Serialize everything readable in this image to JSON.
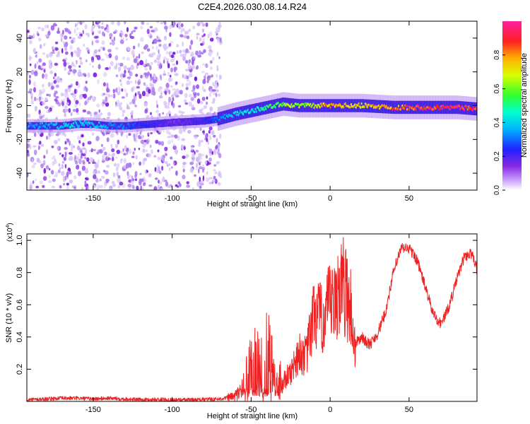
{
  "figure_title": "C2E4.2026.030.08.14.R24",
  "colors": {
    "snr_line": "#ee2222",
    "spectrogram_scatter": "#8a2be2",
    "axes": "#000000"
  },
  "chart_data": [
    {
      "type": "heatmap",
      "title": "",
      "xlabel": "Height of straight line (km)",
      "ylabel": "Frequency (Hz)",
      "xlim": [
        -192,
        93
      ],
      "ylim": [
        -50,
        50
      ],
      "x_ticks": [
        "-150",
        "-100",
        "-50",
        "0",
        "50"
      ],
      "x_tick_values": [
        -150,
        -100,
        -50,
        0,
        50
      ],
      "y_ticks": [
        "-40",
        "-20",
        "0",
        "20",
        "40"
      ],
      "y_tick_values": [
        -40,
        -20,
        0,
        20,
        40
      ],
      "colorbar": {
        "label": "Normalized spectral amplitude",
        "range": [
          0,
          1
        ],
        "ticks": [
          "0.0",
          "0.2",
          "0.4",
          "0.6",
          "0.8"
        ],
        "tick_values": [
          0,
          0.2,
          0.4,
          0.6,
          0.8
        ],
        "colormap": "rainbow (white-violet-blue-cyan-green-yellow-orange-red-magenta)"
      },
      "noise_region_x": [
        -192,
        -72
      ],
      "ridge": {
        "x": [
          -192,
          -180,
          -170,
          -160,
          -150,
          -140,
          -130,
          -100,
          -80,
          -72,
          -60,
          -50,
          -40,
          -30,
          -20,
          -10,
          0,
          10,
          20,
          40,
          60,
          80,
          93
        ],
        "frequency": [
          -12,
          -12,
          -12,
          -11,
          -11,
          -12,
          -12,
          -10,
          -9,
          -8,
          -5,
          -3,
          -1,
          1,
          0,
          0,
          0,
          0,
          0,
          -1,
          -1,
          -1,
          -2
        ],
        "amplitude": [
          0.35,
          0.35,
          0.4,
          0.42,
          0.4,
          0.35,
          0.3,
          0.15,
          0.2,
          0.3,
          0.4,
          0.45,
          0.5,
          0.6,
          0.65,
          0.7,
          0.8,
          0.78,
          0.72,
          0.85,
          0.92,
          0.95,
          0.95
        ]
      }
    },
    {
      "type": "line",
      "title": "",
      "xlabel": "Height of straight line (km)",
      "ylabel": "SNR (10 * v/v)",
      "y_scale_label": "(x10",
      "y_scale_exponent": "4",
      "y_scale_suffix": ")",
      "xlim": [
        -192,
        93
      ],
      "ylim": [
        0,
        1.04
      ],
      "x_ticks": [
        "-150",
        "-100",
        "-50",
        "0",
        "50"
      ],
      "x_tick_values": [
        -150,
        -100,
        -50,
        0,
        50
      ],
      "y_ticks": [
        "0.2",
        "0.4",
        "0.6",
        "0.8",
        "1.0"
      ],
      "y_tick_values": [
        0.2,
        0.4,
        0.6,
        0.8,
        1.0
      ],
      "series": [
        {
          "x": [
            -192,
            -180,
            -170,
            -160,
            -150,
            -140,
            -130,
            -120,
            -110,
            -100,
            -90,
            -80,
            -70,
            -60,
            -55,
            -50,
            -45,
            -40,
            -37,
            -35,
            -30,
            -25,
            -20,
            -15,
            -10,
            -5,
            0,
            3,
            5,
            8,
            10,
            13,
            15,
            20,
            25,
            30,
            35,
            40,
            45,
            50,
            55,
            60,
            65,
            70,
            75,
            80,
            85,
            90,
            93
          ],
          "y": [
            0.01,
            0.015,
            0.02,
            0.02,
            0.015,
            0.02,
            0.015,
            0.01,
            0.012,
            0.01,
            0.01,
            0.012,
            0.015,
            0.03,
            0.08,
            0.25,
            0.2,
            0.3,
            0.2,
            0.12,
            0.12,
            0.18,
            0.3,
            0.28,
            0.55,
            0.5,
            0.6,
            0.58,
            0.7,
            0.72,
            0.68,
            0.6,
            0.35,
            0.4,
            0.35,
            0.42,
            0.55,
            0.8,
            0.95,
            0.95,
            0.88,
            0.72,
            0.55,
            0.48,
            0.58,
            0.75,
            0.9,
            0.92,
            0.82
          ]
        }
      ]
    }
  ]
}
